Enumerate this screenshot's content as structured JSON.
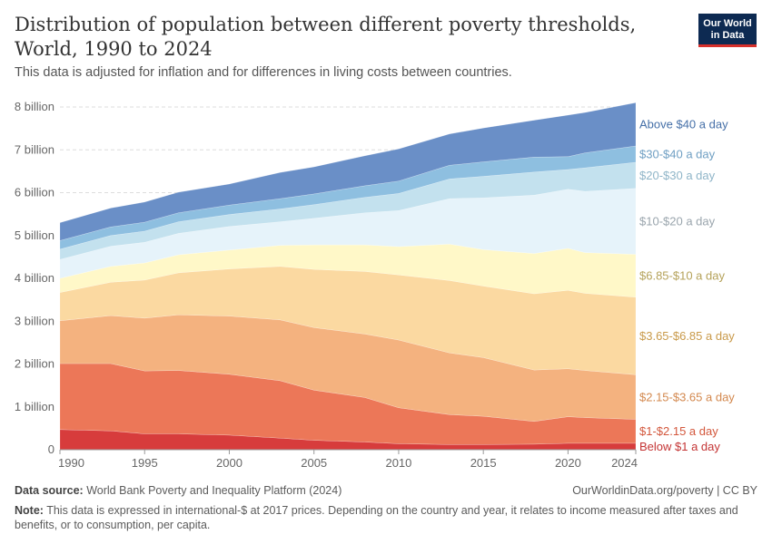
{
  "header": {
    "title": "Distribution of population between different poverty thresholds, World, 1990 to 2024",
    "subtitle": "This data is adjusted for inflation and for differences in living costs between countries.",
    "logo_line1": "Our World",
    "logo_line2": "in Data"
  },
  "footer": {
    "source_label": "Data source:",
    "source_text": "World Bank Poverty and Inequality Platform (2024)",
    "url": "OurWorldinData.org/poverty | CC BY",
    "note_label": "Note:",
    "note_text": "This data is expressed in international-$ at 2017 prices. Depending on the country and year, it relates to income measured after taxes and benefits, or to consumption, per capita."
  },
  "chart_data": {
    "type": "area",
    "stacked": true,
    "title": "Distribution of population between different poverty thresholds, World, 1990 to 2024",
    "xlabel": "",
    "ylabel": "",
    "xlim": [
      1990,
      2024
    ],
    "ylim": [
      0,
      8
    ],
    "y_unit": "billion",
    "grid": "horizontal dashed",
    "legend": "inline labels at right end",
    "x_ticks": [
      "1990",
      "1995",
      "2000",
      "2005",
      "2010",
      "2015",
      "2020",
      "2024"
    ],
    "y_ticks": [
      "0",
      "1 billion",
      "2 billion",
      "3 billion",
      "4 billion",
      "5 billion",
      "6 billion",
      "7 billion",
      "8 billion"
    ],
    "x": [
      1990,
      1993,
      1995,
      1997,
      2000,
      2003,
      2005,
      2008,
      2010,
      2013,
      2015,
      2018,
      2020,
      2021,
      2024
    ],
    "series": [
      {
        "name": "Below $1 a day",
        "color": "#d73c3c",
        "values": [
          0.47,
          0.44,
          0.37,
          0.37,
          0.34,
          0.27,
          0.22,
          0.18,
          0.14,
          0.12,
          0.12,
          0.13,
          0.15,
          0.15,
          0.15
        ]
      },
      {
        "name": "$1-$2.15 a day",
        "color": "#ec7758",
        "values": [
          1.54,
          1.57,
          1.47,
          1.48,
          1.42,
          1.34,
          1.17,
          1.04,
          0.84,
          0.7,
          0.66,
          0.53,
          0.62,
          0.6,
          0.56
        ]
      },
      {
        "name": "$2.15-$3.65 a day",
        "color": "#f4b27f",
        "values": [
          1.0,
          1.12,
          1.23,
          1.3,
          1.36,
          1.42,
          1.46,
          1.48,
          1.58,
          1.44,
          1.37,
          1.2,
          1.12,
          1.1,
          1.04
        ]
      },
      {
        "name": "$3.65-$6.85 a day",
        "color": "#fbd9a1",
        "values": [
          0.66,
          0.78,
          0.89,
          0.98,
          1.1,
          1.25,
          1.36,
          1.46,
          1.52,
          1.69,
          1.67,
          1.78,
          1.83,
          1.8,
          1.81
        ]
      },
      {
        "name": "$6.85-$10 a day",
        "color": "#fff8c8",
        "values": [
          0.33,
          0.37,
          0.4,
          0.42,
          0.44,
          0.49,
          0.57,
          0.62,
          0.66,
          0.85,
          0.85,
          0.94,
          0.98,
          0.95,
          1.0
        ]
      },
      {
        "name": "$10-$20 a day",
        "color": "#e6f3fa",
        "values": [
          0.44,
          0.47,
          0.48,
          0.5,
          0.55,
          0.55,
          0.62,
          0.75,
          0.84,
          1.06,
          1.21,
          1.36,
          1.38,
          1.43,
          1.54
        ]
      },
      {
        "name": "$20-$30 a day",
        "color": "#c3e1ee",
        "values": [
          0.24,
          0.25,
          0.26,
          0.27,
          0.28,
          0.3,
          0.32,
          0.36,
          0.4,
          0.46,
          0.5,
          0.54,
          0.46,
          0.55,
          0.61
        ]
      },
      {
        "name": "$30-$40 a day",
        "color": "#8ebfe0",
        "values": [
          0.2,
          0.2,
          0.21,
          0.21,
          0.22,
          0.24,
          0.25,
          0.27,
          0.29,
          0.32,
          0.34,
          0.35,
          0.3,
          0.35,
          0.38
        ]
      },
      {
        "name": "Above $40 a day",
        "color": "#6a8fc7",
        "values": [
          0.42,
          0.44,
          0.47,
          0.48,
          0.49,
          0.61,
          0.63,
          0.7,
          0.75,
          0.73,
          0.79,
          0.86,
          0.97,
          0.94,
          1.01
        ]
      }
    ],
    "label_colors": [
      "#c43434",
      "#d3573c",
      "#d3884e",
      "#c99a4a",
      "#b5a25a",
      "#9aa5ad",
      "#8fb5c8",
      "#6f9fc3",
      "#4670a8"
    ]
  }
}
